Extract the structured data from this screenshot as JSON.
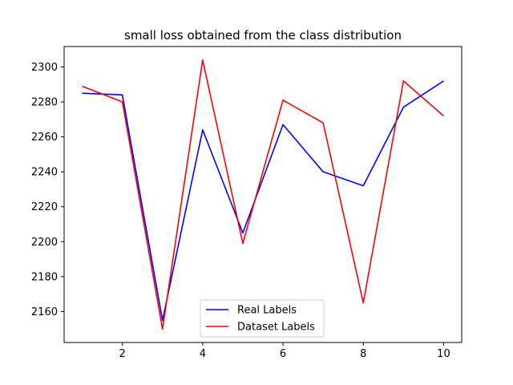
{
  "chart_data": {
    "type": "line",
    "title": "small loss obtained from the class distribution",
    "xlabel": "",
    "ylabel": "",
    "x": [
      1,
      2,
      3,
      4,
      5,
      6,
      7,
      8,
      9,
      10
    ],
    "series": [
      {
        "name": "Real Labels",
        "color": "#0000ff",
        "values": [
          2285,
          2284,
          2155,
          2264,
          2205,
          2267,
          2240,
          2232,
          2277,
          2292
        ]
      },
      {
        "name": "Dataset Labels",
        "color": "#ff0000",
        "values": [
          2289,
          2280,
          2150,
          2304,
          2199,
          2281,
          2268,
          2165,
          2292,
          2272
        ]
      }
    ],
    "xlim": [
      0.55,
      10.45
    ],
    "ylim": [
      2142.3,
      2311.7
    ],
    "xticks": [
      2,
      4,
      6,
      8,
      10
    ],
    "yticks": [
      2160,
      2180,
      2200,
      2220,
      2240,
      2260,
      2280,
      2300
    ],
    "grid": false,
    "legend_position": "bottom-center"
  }
}
